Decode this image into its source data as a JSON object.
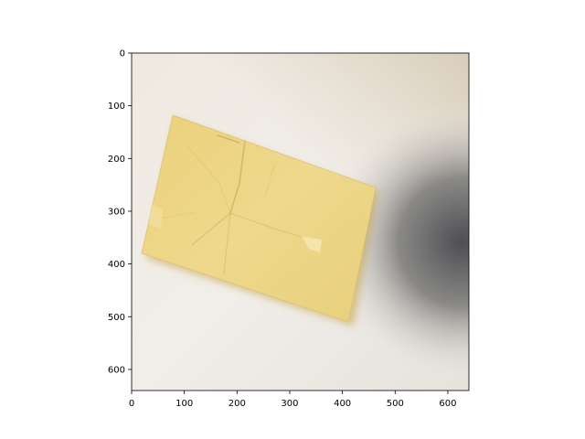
{
  "image": {
    "subject": "crumpled yellow paper note on a light surface",
    "colors": {
      "paper": "#ecd585",
      "paper_shadow": "#c9a84a",
      "background_light": "#f0ece6",
      "background_dark": "#4e4f54"
    }
  },
  "axes": {
    "x_ticks": [
      {
        "value": 0,
        "label": "0"
      },
      {
        "value": 100,
        "label": "100"
      },
      {
        "value": 200,
        "label": "200"
      },
      {
        "value": 300,
        "label": "300"
      },
      {
        "value": 400,
        "label": "400"
      },
      {
        "value": 500,
        "label": "500"
      },
      {
        "value": 600,
        "label": "600"
      }
    ],
    "y_ticks": [
      {
        "value": 0,
        "label": "0"
      },
      {
        "value": 100,
        "label": "100"
      },
      {
        "value": 200,
        "label": "200"
      },
      {
        "value": 300,
        "label": "300"
      },
      {
        "value": 400,
        "label": "400"
      },
      {
        "value": 500,
        "label": "500"
      },
      {
        "value": 600,
        "label": "600"
      }
    ],
    "x_range": [
      0,
      640
    ],
    "y_range": [
      640,
      0
    ]
  }
}
